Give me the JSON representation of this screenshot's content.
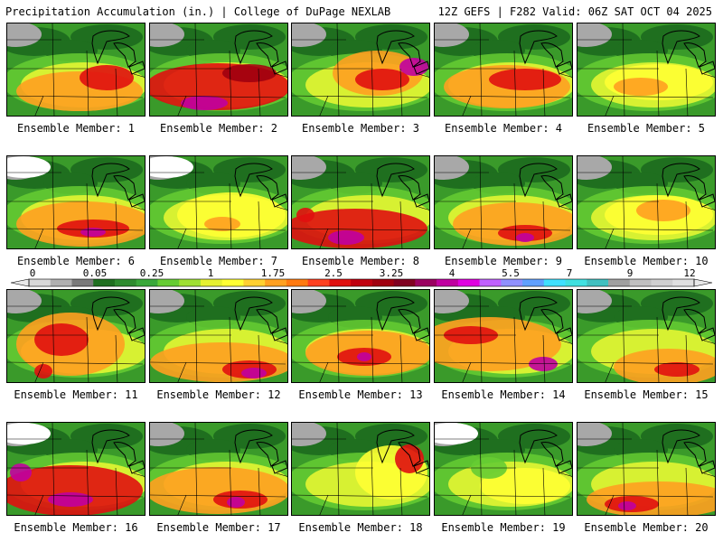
{
  "header": {
    "left": "Precipitation Accumulation (in.) | College of DuPage NEXLAB",
    "right": "12Z GEFS | F282 Valid: 06Z SAT OCT 04 2025"
  },
  "colorbar": {
    "tick_labels": [
      "0",
      "0.05",
      "0.25",
      "1",
      "1.75",
      "2.5",
      "3.25",
      "4",
      "5.5",
      "7",
      "9",
      "12"
    ],
    "colors": [
      "#d8d8d8",
      "#b0b0b0",
      "#7a7a7a",
      "#1f6f1f",
      "#2e8b2e",
      "#3aa83a",
      "#66cc33",
      "#9fe033",
      "#e6f030",
      "#ffff33",
      "#ffd030",
      "#ffa020",
      "#ff7a10",
      "#ff4020",
      "#e01010",
      "#c00010",
      "#a00010",
      "#800020",
      "#9a0060",
      "#c000a0",
      "#e000e0",
      "#c060ff",
      "#9090ff",
      "#60a0ff",
      "#40e0ff",
      "#40e0e0",
      "#40c0c0",
      "#a0a0a0",
      "#c0c0c0",
      "#d0d0d0",
      "#e0e0e0"
    ]
  },
  "panels": [
    {
      "label": "Ensemble Member: 1"
    },
    {
      "label": "Ensemble Member: 2"
    },
    {
      "label": "Ensemble Member: 3"
    },
    {
      "label": "Ensemble Member: 4"
    },
    {
      "label": "Ensemble Member: 5"
    },
    {
      "label": "Ensemble Member: 6"
    },
    {
      "label": "Ensemble Member: 7"
    },
    {
      "label": "Ensemble Member: 8"
    },
    {
      "label": "Ensemble Member: 9"
    },
    {
      "label": "Ensemble Member: 10"
    },
    {
      "label": "Ensemble Member: 11"
    },
    {
      "label": "Ensemble Member: 12"
    },
    {
      "label": "Ensemble Member: 13"
    },
    {
      "label": "Ensemble Member: 14"
    },
    {
      "label": "Ensemble Member: 15"
    },
    {
      "label": "Ensemble Member: 16"
    },
    {
      "label": "Ensemble Member: 17"
    },
    {
      "label": "Ensemble Member: 18"
    },
    {
      "label": "Ensemble Member: 19"
    },
    {
      "label": "Ensemble Member: 20"
    }
  ],
  "map_colors": {
    "background_green": "#3a9a2a",
    "dark_green": "#1f6f1f",
    "light_green": "#66cc33",
    "yellow": "#ffff33",
    "orange": "#ffa020",
    "red": "#e01010",
    "darkred": "#a00010",
    "magenta": "#c000a0",
    "gray": "#a8a8a8",
    "white": "#ffffff"
  }
}
